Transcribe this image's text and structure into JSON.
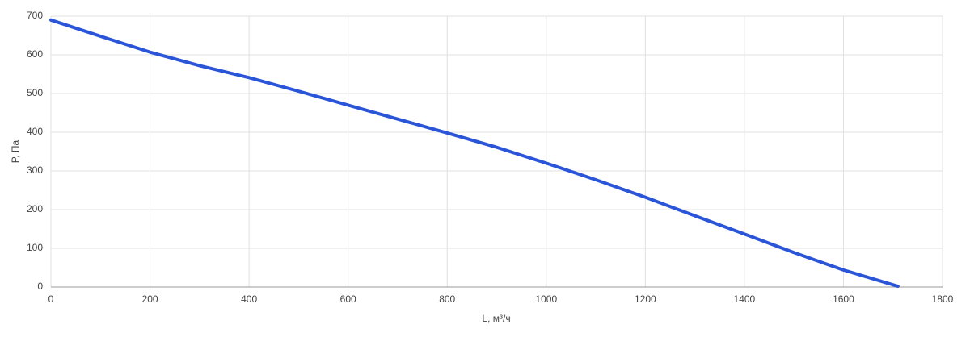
{
  "chart_data": {
    "type": "line",
    "x_label": "L, м³/ч",
    "y_label": "P, Па",
    "x": [
      0,
      100,
      200,
      300,
      400,
      500,
      600,
      700,
      800,
      900,
      1000,
      1100,
      1200,
      1300,
      1400,
      1500,
      1600,
      1710
    ],
    "series": [
      {
        "color": "#2a55d9",
        "values": [
          690,
          648,
          607,
          572,
          541,
          506,
          470,
          434,
          398,
          361,
          320,
          277,
          232,
          184,
          137,
          89,
          44,
          2
        ]
      }
    ],
    "xlim": [
      0,
      1800
    ],
    "xticks": [
      0,
      200,
      400,
      600,
      800,
      1000,
      1200,
      1400,
      1600,
      1800
    ],
    "ylim": [
      0,
      700
    ],
    "yticks": [
      0,
      100,
      200,
      300,
      400,
      500,
      600,
      700
    ],
    "grid": true
  }
}
